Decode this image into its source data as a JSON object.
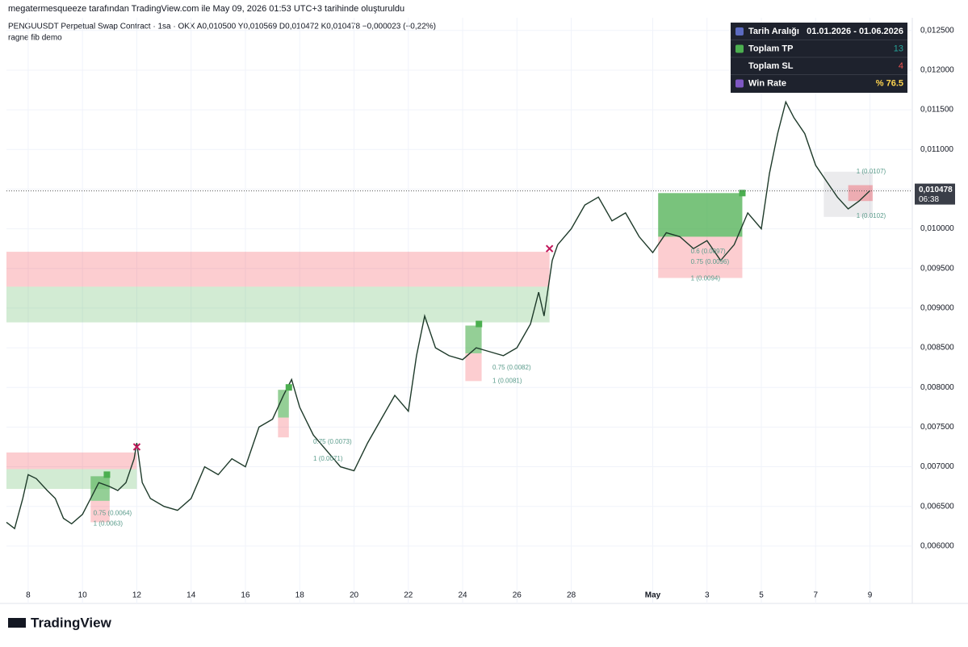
{
  "header": {
    "credit": "megatermesqueeze tarafından TradingView.com ile May 09, 2026 01:53 UTC+3 tarihinde oluşturuldu",
    "symbol": "PENGUUSDT Perpetual Swap Contract · 1sa · OKX  A0,010500  Y0,010569  D0,010472  K0,010478  −0,000023 (−0,22%)",
    "indicator": "ragne fib demo",
    "logo": "TradingView"
  },
  "stats": {
    "rows": [
      [
        "Tarih Aralığı",
        "01.01.2026 - 01.06.2026"
      ],
      [
        "Toplam TP",
        "13"
      ],
      [
        "Toplam SL",
        "4"
      ],
      [
        "Win Rate",
        "% 76.5"
      ]
    ],
    "colors": [
      "#ffffff",
      "#26a69a",
      "#ef5350",
      "#ffd54f"
    ]
  },
  "chart_data": {
    "type": "line",
    "color": "#1e3a2a",
    "grid": true,
    "x": [
      7.2,
      7.5,
      7.8,
      8.0,
      8.3,
      8.7,
      9.0,
      9.3,
      9.6,
      10.0,
      10.3,
      10.6,
      11.0,
      11.3,
      11.6,
      11.9,
      12.0,
      12.2,
      12.5,
      13.0,
      13.5,
      14.0,
      14.5,
      15.0,
      15.5,
      16.0,
      16.5,
      17.0,
      17.4,
      17.7,
      18.0,
      18.5,
      19.0,
      19.5,
      20.0,
      20.5,
      21.0,
      21.5,
      22.0,
      22.3,
      22.6,
      23.0,
      23.5,
      24.0,
      24.5,
      25.0,
      25.5,
      26.0,
      26.5,
      26.8,
      27.0,
      27.3,
      27.5,
      28.0,
      28.5,
      29.0,
      29.5,
      30.0,
      30.5,
      31.0,
      31.5,
      32.0,
      32.5,
      33.0,
      33.5,
      34.0,
      34.5,
      35.0,
      35.3,
      35.6,
      35.9,
      36.2,
      36.6,
      37.0,
      37.4,
      37.8,
      38.2,
      38.6,
      39.0
    ],
    "values": [
      0.0063,
      0.00622,
      0.0066,
      0.0069,
      0.00685,
      0.0067,
      0.0066,
      0.00635,
      0.00628,
      0.0064,
      0.0066,
      0.0068,
      0.00675,
      0.0067,
      0.0068,
      0.0071,
      0.0073,
      0.0068,
      0.0066,
      0.0065,
      0.00645,
      0.0066,
      0.007,
      0.0069,
      0.0071,
      0.007,
      0.0075,
      0.0076,
      0.0079,
      0.0081,
      0.00775,
      0.0074,
      0.0072,
      0.007,
      0.00695,
      0.0073,
      0.0076,
      0.0079,
      0.0077,
      0.0084,
      0.0089,
      0.0085,
      0.0084,
      0.00835,
      0.0085,
      0.00845,
      0.0084,
      0.0085,
      0.0088,
      0.0092,
      0.0089,
      0.0096,
      0.0098,
      0.01,
      0.0103,
      0.0104,
      0.0101,
      0.0102,
      0.0099,
      0.0097,
      0.00995,
      0.0099,
      0.00975,
      0.00985,
      0.0096,
      0.0098,
      0.0102,
      0.01,
      0.0107,
      0.0112,
      0.0116,
      0.0114,
      0.0112,
      0.0108,
      0.0106,
      0.0104,
      0.01025,
      0.01035,
      0.01048
    ],
    "xlim": [
      7.2,
      40.5
    ],
    "ylim": [
      0.00548,
      0.01263
    ],
    "xticks": [
      8,
      10,
      12,
      14,
      16,
      18,
      20,
      22,
      24,
      26,
      28,
      {
        "value": 31,
        "label": "May"
      },
      {
        "value": 33,
        "label": "3"
      },
      {
        "value": 35,
        "label": "5"
      },
      {
        "value": 37,
        "label": "7"
      },
      {
        "value": 39,
        "label": "9"
      }
    ],
    "yticks": [
      {
        "value": 0.006,
        "label": "0,006000"
      },
      {
        "value": 0.0065,
        "label": "0,006500"
      },
      {
        "value": 0.007,
        "label": "0,007000"
      },
      {
        "value": 0.0075,
        "label": "0,007500"
      },
      {
        "value": 0.008,
        "label": "0,008000"
      },
      {
        "value": 0.0085,
        "label": "0,008500"
      },
      {
        "value": 0.009,
        "label": "0,009000"
      },
      {
        "value": 0.0095,
        "label": "0,009500"
      },
      {
        "value": 0.01,
        "label": "0,010000"
      },
      {
        "value": 0.0105,
        "label": "0,010500"
      },
      {
        "value": 0.011,
        "label": "0,011000"
      },
      {
        "value": 0.0115,
        "label": "0,011500"
      },
      {
        "value": 0.012,
        "label": "0,012000"
      },
      {
        "value": 0.0125,
        "label": "0,012500"
      }
    ],
    "last": {
      "value": 0.010478,
      "label": "0,010478",
      "countdown": "06:38"
    },
    "zones": [
      {
        "x": [
          7.2,
          12.0
        ],
        "y": [
          0.00697,
          0.00718
        ],
        "color": "rgba(242,54,69,0.25)"
      },
      {
        "x": [
          7.2,
          12.0
        ],
        "y": [
          0.00672,
          0.00697
        ],
        "color": "rgba(76,175,80,0.25)"
      },
      {
        "x": [
          7.2,
          27.2
        ],
        "y": [
          0.00927,
          0.00971
        ],
        "color": "rgba(242,54,69,0.25)"
      },
      {
        "x": [
          7.2,
          27.2
        ],
        "y": [
          0.00882,
          0.00927
        ],
        "color": "rgba(76,175,80,0.25)"
      },
      {
        "x": [
          10.3,
          11.0
        ],
        "y": [
          0.00657,
          0.00688
        ],
        "color": "rgba(76,175,80,0.6)"
      },
      {
        "x": [
          10.3,
          11.0
        ],
        "y": [
          0.0063,
          0.00657
        ],
        "color": "rgba(242,54,69,0.25)"
      },
      {
        "x": [
          17.2,
          17.6
        ],
        "y": [
          0.00762,
          0.00797
        ],
        "color": "rgba(76,175,80,0.6)"
      },
      {
        "x": [
          17.2,
          17.6
        ],
        "y": [
          0.00737,
          0.00762
        ],
        "color": "rgba(242,54,69,0.25)"
      },
      {
        "x": [
          24.1,
          24.7
        ],
        "y": [
          0.00843,
          0.00878
        ],
        "color": "rgba(76,175,80,0.6)"
      },
      {
        "x": [
          24.1,
          24.7
        ],
        "y": [
          0.00808,
          0.00843
        ],
        "color": "rgba(242,54,69,0.25)"
      },
      {
        "x": [
          31.2,
          34.3
        ],
        "y": [
          0.0099,
          0.01045
        ],
        "color": "rgba(76,175,80,0.75)"
      },
      {
        "x": [
          31.2,
          34.3
        ],
        "y": [
          0.00938,
          0.0099
        ],
        "color": "rgba(242,54,69,0.25)"
      },
      {
        "x": [
          37.3,
          39.1
        ],
        "y": [
          0.01015,
          0.01072
        ],
        "color": "rgba(120,123,134,0.15)"
      },
      {
        "x": [
          38.2,
          39.1
        ],
        "y": [
          0.01035,
          0.01055
        ],
        "color": "rgba(242,54,69,0.35)"
      }
    ],
    "markers": [
      {
        "x": 12.0,
        "y": 0.00725,
        "color": "#c2185b",
        "shape": "cross"
      },
      {
        "x": 27.2,
        "y": 0.00975,
        "color": "#c2185b",
        "shape": "cross"
      },
      {
        "x": 10.9,
        "y": 0.0069,
        "color": "#4caf50",
        "shape": "check"
      },
      {
        "x": 17.6,
        "y": 0.008,
        "color": "#4caf50",
        "shape": "check"
      },
      {
        "x": 24.6,
        "y": 0.0088,
        "color": "#4caf50",
        "shape": "check"
      },
      {
        "x": 34.3,
        "y": 0.01045,
        "color": "#4caf50",
        "shape": "check"
      }
    ],
    "annotations": [
      {
        "text": "1 (0.0063)",
        "x": 10.4,
        "y": 0.00628
      },
      {
        "text": "0.75 (0.0064)",
        "x": 10.4,
        "y": 0.00641
      },
      {
        "text": "1 (0.0071)",
        "x": 18.5,
        "y": 0.0071
      },
      {
        "text": "0.75 (0.0073)",
        "x": 18.5,
        "y": 0.00731
      },
      {
        "text": "1 (0.0081)",
        "x": 25.1,
        "y": 0.00808
      },
      {
        "text": "0.75 (0.0082)",
        "x": 25.1,
        "y": 0.00825
      },
      {
        "text": "0.6 (0.0097)",
        "x": 32.4,
        "y": 0.00971
      },
      {
        "text": "0.75 (0.0096)",
        "x": 32.4,
        "y": 0.00958
      },
      {
        "text": "1 (0.0094)",
        "x": 32.4,
        "y": 0.00937
      },
      {
        "text": "1 (0.0107)",
        "x": 38.5,
        "y": 0.01072
      },
      {
        "text": "1 (0.0102)",
        "x": 38.5,
        "y": 0.01016
      }
    ]
  }
}
